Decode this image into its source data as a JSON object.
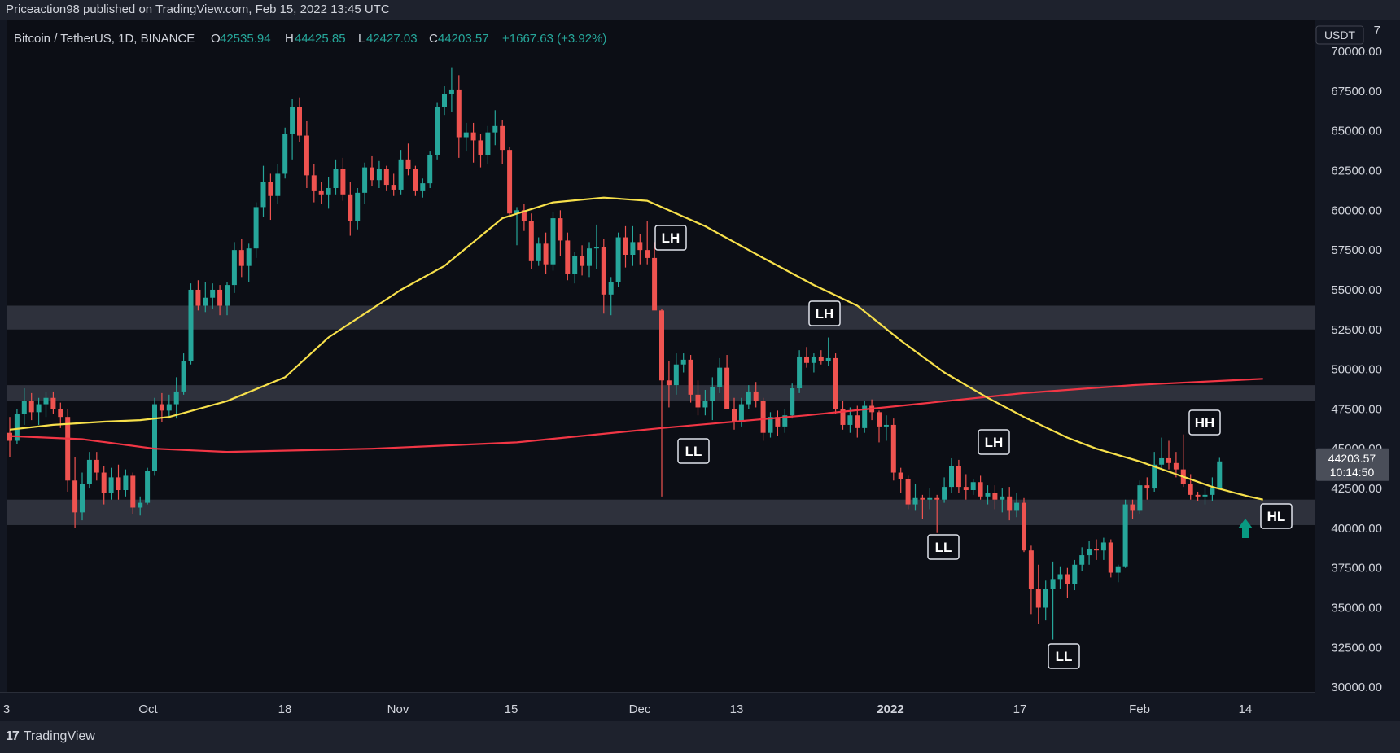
{
  "header": {
    "publisher_text": "Priceaction98 published on TradingView.com, Feb 15, 2022 13:45 UTC"
  },
  "legend": {
    "symbol": "Bitcoin / TetherUS, 1D, BINANCE",
    "o_label": "O",
    "o_value": "42535.94",
    "h_label": "H",
    "h_value": "44425.85",
    "l_label": "L",
    "l_value": "42427.03",
    "c_label": "C",
    "c_value": "44203.57",
    "change": "+1667.63 (+3.92%)"
  },
  "price_scale": {
    "currency": "USDT",
    "top_partial": "7",
    "ticks": [
      "70000.00",
      "67500.00",
      "65000.00",
      "62500.00",
      "60000.00",
      "57500.00",
      "55000.00",
      "52500.00",
      "50000.00",
      "47500.00",
      "45000.00",
      "42500.00",
      "40000.00",
      "37500.00",
      "35000.00",
      "32500.00",
      "30000.00"
    ],
    "current_price": "44203.57",
    "countdown": "10:14:50"
  },
  "time_scale": {
    "labels": [
      {
        "text": "3",
        "bold": false
      },
      {
        "text": "Oct",
        "bold": false
      },
      {
        "text": "18",
        "bold": false
      },
      {
        "text": "Nov",
        "bold": false
      },
      {
        "text": "15",
        "bold": false
      },
      {
        "text": "Dec",
        "bold": false
      },
      {
        "text": "13",
        "bold": false
      },
      {
        "text": "2022",
        "bold": true
      },
      {
        "text": "17",
        "bold": false
      },
      {
        "text": "Feb",
        "bold": false
      },
      {
        "text": "14",
        "bold": false
      }
    ]
  },
  "annotations": [
    "LH",
    "LH",
    "LL",
    "LH",
    "LL",
    "LL",
    "HH",
    "HL"
  ],
  "footer": {
    "brand": "TradingView",
    "brand_icon": "tradingview-logo-icon"
  },
  "colors": {
    "background": "#131722",
    "up": "#26a69a",
    "down": "#ef5350",
    "ma_short": "#f7e04b",
    "ma_long": "#f23645",
    "zone": "#3a3e4a",
    "arrow": "#089981"
  },
  "chart_data": {
    "type": "candlestick",
    "price_range": [
      29700,
      72000
    ],
    "zones": [
      [
        52500,
        54000
      ],
      [
        48000,
        49000
      ],
      [
        40200,
        41800
      ]
    ],
    "candles": [
      [
        46000,
        47000,
        44500,
        45500
      ],
      [
        45500,
        47500,
        45300,
        47200
      ],
      [
        47200,
        48800,
        46500,
        48000
      ],
      [
        48000,
        48500,
        46800,
        47300
      ],
      [
        47300,
        48200,
        46500,
        47800
      ],
      [
        47800,
        48600,
        47000,
        48200
      ],
      [
        48200,
        48600,
        47200,
        47500
      ],
      [
        47500,
        47900,
        46300,
        47000
      ],
      [
        47000,
        47500,
        42300,
        43000
      ],
      [
        43000,
        44500,
        40000,
        41000
      ],
      [
        41000,
        43500,
        40500,
        42800
      ],
      [
        42800,
        44800,
        42500,
        44300
      ],
      [
        44300,
        44800,
        43000,
        43500
      ],
      [
        43500,
        43900,
        41500,
        42200
      ],
      [
        42200,
        43800,
        41800,
        43200
      ],
      [
        43200,
        44000,
        41800,
        42400
      ],
      [
        42400,
        43700,
        42000,
        43300
      ],
      [
        43300,
        43500,
        40900,
        41300
      ],
      [
        41300,
        42000,
        40800,
        41600
      ],
      [
        41600,
        43800,
        41500,
        43600
      ],
      [
        43600,
        48200,
        43300,
        47800
      ],
      [
        47800,
        48500,
        46700,
        47400
      ],
      [
        47400,
        48400,
        46900,
        47800
      ],
      [
        47800,
        49500,
        46900,
        48600
      ],
      [
        48600,
        51000,
        48400,
        50500
      ],
      [
        50500,
        55400,
        50300,
        55000
      ],
      [
        55000,
        55600,
        53700,
        54000
      ],
      [
        54000,
        55500,
        53600,
        54500
      ],
      [
        54500,
        55400,
        53800,
        55000
      ],
      [
        55000,
        55300,
        53400,
        54000
      ],
      [
        54000,
        55500,
        53400,
        55300
      ],
      [
        55300,
        58000,
        54800,
        57500
      ],
      [
        57500,
        58200,
        55800,
        56500
      ],
      [
        56500,
        57900,
        55500,
        57600
      ],
      [
        57600,
        60500,
        57000,
        60200
      ],
      [
        60200,
        62800,
        59600,
        61800
      ],
      [
        61800,
        62300,
        59400,
        60900
      ],
      [
        60900,
        62900,
        60400,
        62300
      ],
      [
        62300,
        65200,
        62000,
        64800
      ],
      [
        64800,
        67000,
        63200,
        66500
      ],
      [
        66500,
        67100,
        64300,
        64700
      ],
      [
        64700,
        65600,
        61400,
        62200
      ],
      [
        62200,
        62900,
        60500,
        61200
      ],
      [
        61200,
        61800,
        60400,
        61000
      ],
      [
        61000,
        62100,
        60100,
        61400
      ],
      [
        61400,
        63200,
        61000,
        62600
      ],
      [
        62600,
        63300,
        60600,
        61000
      ],
      [
        61000,
        61800,
        58400,
        59300
      ],
      [
        59300,
        61400,
        58800,
        61100
      ],
      [
        61100,
        63000,
        60400,
        62700
      ],
      [
        62700,
        63400,
        61500,
        61900
      ],
      [
        61900,
        63100,
        61400,
        62600
      ],
      [
        62600,
        62800,
        61200,
        61600
      ],
      [
        61600,
        62300,
        60900,
        61300
      ],
      [
        61300,
        63800,
        61000,
        63200
      ],
      [
        63200,
        64200,
        62200,
        62600
      ],
      [
        62600,
        62800,
        60900,
        61200
      ],
      [
        61200,
        62000,
        60800,
        61700
      ],
      [
        61700,
        63700,
        61400,
        63500
      ],
      [
        63500,
        66800,
        63200,
        66500
      ],
      [
        66500,
        67800,
        66000,
        67300
      ],
      [
        67300,
        69000,
        66200,
        67600
      ],
      [
        67600,
        68500,
        63300,
        64600
      ],
      [
        64600,
        65500,
        63700,
        64900
      ],
      [
        64900,
        65500,
        63000,
        64400
      ],
      [
        64400,
        64800,
        62700,
        63500
      ],
      [
        63500,
        65300,
        62900,
        64900
      ],
      [
        64900,
        66300,
        64100,
        65300
      ],
      [
        65300,
        65700,
        62900,
        63800
      ],
      [
        63800,
        64000,
        59600,
        59800
      ],
      [
        59800,
        60200,
        57800,
        60000
      ],
      [
        60000,
        60400,
        58700,
        59300
      ],
      [
        59300,
        59800,
        56300,
        56800
      ],
      [
        56800,
        58300,
        56500,
        57900
      ],
      [
        57900,
        58600,
        56000,
        56600
      ],
      [
        56600,
        59900,
        56200,
        59500
      ],
      [
        59500,
        60000,
        57100,
        58100
      ],
      [
        58100,
        58600,
        55600,
        56000
      ],
      [
        56000,
        57400,
        55400,
        57100
      ],
      [
        57100,
        57800,
        55900,
        56500
      ],
      [
        56500,
        58000,
        55800,
        57600
      ],
      [
        57600,
        59100,
        56300,
        57700
      ],
      [
        57700,
        58200,
        53500,
        54700
      ],
      [
        54700,
        55800,
        53400,
        55500
      ],
      [
        55500,
        58600,
        55200,
        58300
      ],
      [
        58300,
        59000,
        56400,
        57200
      ],
      [
        57200,
        59000,
        56500,
        58000
      ],
      [
        58000,
        58500,
        56600,
        57500
      ],
      [
        57500,
        59300,
        56600,
        57000
      ],
      [
        57000,
        58000,
        53800,
        53700
      ],
      [
        53700,
        53800,
        42000,
        49300
      ],
      [
        49300,
        50500,
        47600,
        49000
      ],
      [
        49000,
        51000,
        48400,
        50300
      ],
      [
        50300,
        51000,
        49800,
        50600
      ],
      [
        50600,
        50900,
        47900,
        48400
      ],
      [
        48400,
        49300,
        47100,
        47600
      ],
      [
        47600,
        48700,
        47100,
        48000
      ],
      [
        48000,
        49500,
        46800,
        48900
      ],
      [
        48900,
        50700,
        48500,
        50100
      ],
      [
        50100,
        50900,
        47600,
        47500
      ],
      [
        47500,
        48200,
        46200,
        46700
      ],
      [
        46700,
        48200,
        46400,
        47800
      ],
      [
        47800,
        49000,
        47500,
        48600
      ],
      [
        48600,
        49200,
        47600,
        48000
      ],
      [
        48000,
        48200,
        45500,
        46000
      ],
      [
        46000,
        47300,
        45700,
        47000
      ],
      [
        47000,
        47400,
        45800,
        46400
      ],
      [
        46400,
        47500,
        46000,
        47100
      ],
      [
        47100,
        49100,
        46900,
        48800
      ],
      [
        48800,
        51200,
        48500,
        50800
      ],
      [
        50800,
        51400,
        50100,
        50400
      ],
      [
        50400,
        51000,
        49800,
        50800
      ],
      [
        50800,
        51200,
        50300,
        50500
      ],
      [
        50500,
        52000,
        50200,
        50700
      ],
      [
        50700,
        51000,
        47200,
        47500
      ],
      [
        47500,
        48000,
        46200,
        46500
      ],
      [
        46500,
        47600,
        46000,
        47100
      ],
      [
        47100,
        47700,
        45700,
        46300
      ],
      [
        46300,
        48000,
        46000,
        47700
      ],
      [
        47700,
        48100,
        46800,
        47300
      ],
      [
        47300,
        47400,
        45400,
        46400
      ],
      [
        46400,
        47100,
        45500,
        46500
      ],
      [
        46500,
        46900,
        43000,
        43500
      ],
      [
        43500,
        43800,
        42200,
        43100
      ],
      [
        43100,
        43300,
        41200,
        41500
      ],
      [
        41500,
        42800,
        41100,
        41900
      ],
      [
        41900,
        42100,
        40600,
        41800
      ],
      [
        41800,
        42500,
        41200,
        41900
      ],
      [
        41900,
        42100,
        39700,
        41800
      ],
      [
        41800,
        43200,
        41600,
        42600
      ],
      [
        42600,
        44400,
        42200,
        43900
      ],
      [
        43900,
        44300,
        42200,
        42600
      ],
      [
        42600,
        43400,
        41800,
        42400
      ],
      [
        42400,
        43100,
        42100,
        42900
      ],
      [
        42900,
        43300,
        41800,
        42000
      ],
      [
        42000,
        42700,
        41500,
        42200
      ],
      [
        42200,
        42700,
        41200,
        41800
      ],
      [
        41800,
        42500,
        41000,
        42000
      ],
      [
        42000,
        42600,
        40500,
        41100
      ],
      [
        41100,
        42200,
        40700,
        41600
      ],
      [
        41600,
        41900,
        38500,
        38600
      ],
      [
        38600,
        38900,
        34600,
        36200
      ],
      [
        36200,
        37700,
        34000,
        35000
      ],
      [
        35000,
        36700,
        34200,
        36200
      ],
      [
        36200,
        37900,
        33000,
        36800
      ],
      [
        36800,
        37600,
        36200,
        37100
      ],
      [
        37100,
        37500,
        35600,
        36500
      ],
      [
        36500,
        38000,
        36100,
        37700
      ],
      [
        37700,
        38800,
        37300,
        38300
      ],
      [
        38300,
        39200,
        37700,
        38700
      ],
      [
        38700,
        39300,
        38000,
        38600
      ],
      [
        38600,
        39400,
        38000,
        39100
      ],
      [
        39100,
        39300,
        36900,
        37200
      ],
      [
        37200,
        37700,
        36600,
        37600
      ],
      [
        37600,
        41800,
        37500,
        41500
      ],
      [
        41500,
        41800,
        40600,
        41100
      ],
      [
        41100,
        43000,
        40900,
        42700
      ],
      [
        42700,
        43200,
        41800,
        42500
      ],
      [
        42500,
        44800,
        42300,
        44000
      ],
      [
        44000,
        45700,
        43800,
        44400
      ],
      [
        44400,
        45500,
        43700,
        44100
      ],
      [
        44100,
        44800,
        43200,
        43700
      ],
      [
        43700,
        45900,
        42600,
        42800
      ],
      [
        42800,
        43400,
        41800,
        42100
      ],
      [
        42100,
        42300,
        41700,
        42000
      ],
      [
        42000,
        42600,
        41500,
        42100
      ],
      [
        42100,
        43200,
        41700,
        42500
      ],
      [
        42535.94,
        44425.85,
        42427.03,
        44203.57
      ]
    ],
    "sma_50": [
      [
        0,
        46200
      ],
      [
        6,
        46500
      ],
      [
        13,
        46700
      ],
      [
        18,
        46800
      ],
      [
        22,
        47000
      ],
      [
        30,
        48000
      ],
      [
        38,
        49500
      ],
      [
        44,
        52000
      ],
      [
        54,
        55000
      ],
      [
        60,
        56500
      ],
      [
        68,
        59500
      ],
      [
        75,
        60500
      ],
      [
        82,
        60800
      ],
      [
        88,
        60600
      ],
      [
        96,
        59000
      ],
      [
        104,
        57000
      ],
      [
        111,
        55300
      ],
      [
        117,
        54000
      ],
      [
        123,
        51800
      ],
      [
        129,
        49800
      ],
      [
        135,
        48200
      ],
      [
        140,
        47000
      ],
      [
        146,
        45700
      ],
      [
        150,
        45000
      ],
      [
        156,
        44200
      ],
      [
        161,
        43400
      ],
      [
        166,
        42600
      ],
      [
        171,
        42000
      ],
      [
        173,
        41800
      ]
    ],
    "sma_200": [
      [
        0,
        45800
      ],
      [
        10,
        45600
      ],
      [
        20,
        45000
      ],
      [
        30,
        44800
      ],
      [
        50,
        45000
      ],
      [
        70,
        45400
      ],
      [
        90,
        46300
      ],
      [
        110,
        47100
      ],
      [
        125,
        47800
      ],
      [
        140,
        48500
      ],
      [
        155,
        49000
      ],
      [
        173,
        49400
      ]
    ]
  }
}
